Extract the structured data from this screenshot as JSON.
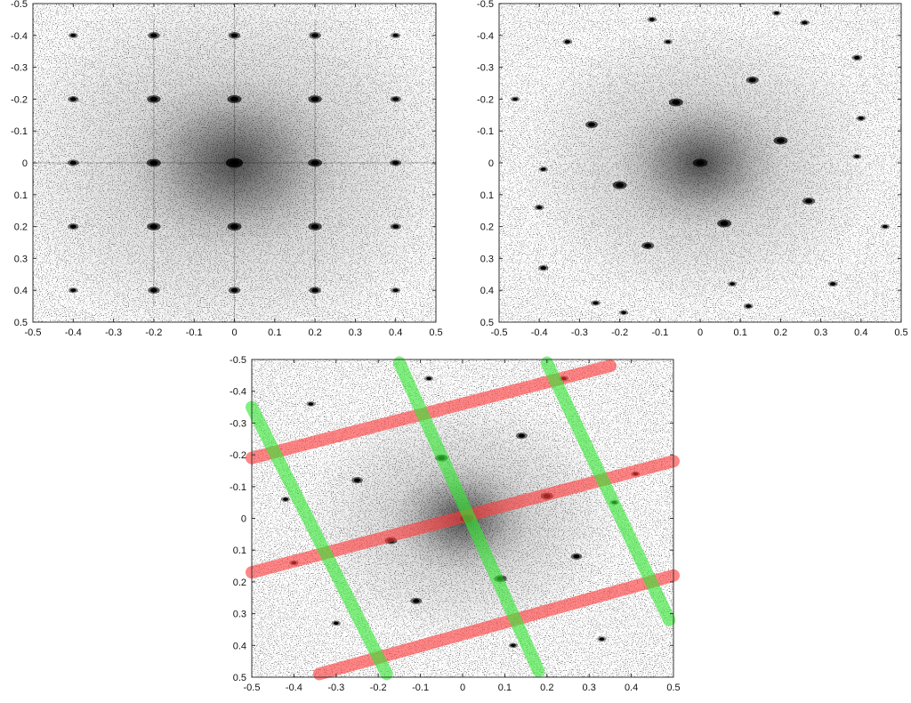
{
  "chart_data": [
    {
      "type": "scatter",
      "panel": "top-left",
      "xlim": [
        -0.5,
        0.5
      ],
      "ylim": [
        -0.5,
        0.5
      ],
      "y_axis_inverted": true,
      "grid": false,
      "x_tick_labels": [
        "-0.5",
        "-0.4",
        "-0.3",
        "-0.2",
        "-0.1",
        "0",
        "0.1",
        "0.2",
        "0.3",
        "0.4",
        "0.5"
      ],
      "y_tick_labels": [
        "-0.5",
        "-0.4",
        "-0.3",
        "-0.2",
        "-0.1",
        "0",
        "0.1",
        "0.2",
        "0.3",
        "0.4",
        "0.5"
      ],
      "diffuse_center": [
        0.0,
        0.0
      ],
      "peaks": [
        {
          "x": 0.0,
          "y": 0.0,
          "i": 1.0
        },
        {
          "x": -0.2,
          "y": 0.0,
          "i": 0.75
        },
        {
          "x": 0.2,
          "y": 0.0,
          "i": 0.75
        },
        {
          "x": 0.0,
          "y": -0.2,
          "i": 0.75
        },
        {
          "x": 0.0,
          "y": 0.2,
          "i": 0.75
        },
        {
          "x": -0.2,
          "y": -0.2,
          "i": 0.7
        },
        {
          "x": 0.2,
          "y": -0.2,
          "i": 0.7
        },
        {
          "x": -0.2,
          "y": 0.2,
          "i": 0.7
        },
        {
          "x": 0.2,
          "y": 0.2,
          "i": 0.7
        },
        {
          "x": -0.4,
          "y": 0.0,
          "i": 0.5
        },
        {
          "x": 0.4,
          "y": 0.0,
          "i": 0.5
        },
        {
          "x": 0.0,
          "y": -0.4,
          "i": 0.55
        },
        {
          "x": 0.0,
          "y": 0.4,
          "i": 0.55
        },
        {
          "x": -0.2,
          "y": -0.4,
          "i": 0.55
        },
        {
          "x": 0.2,
          "y": -0.4,
          "i": 0.55
        },
        {
          "x": -0.2,
          "y": 0.4,
          "i": 0.55
        },
        {
          "x": 0.2,
          "y": 0.4,
          "i": 0.55
        },
        {
          "x": -0.4,
          "y": -0.2,
          "i": 0.45
        },
        {
          "x": 0.4,
          "y": -0.2,
          "i": 0.45
        },
        {
          "x": -0.4,
          "y": 0.2,
          "i": 0.45
        },
        {
          "x": 0.4,
          "y": 0.2,
          "i": 0.45
        },
        {
          "x": -0.4,
          "y": -0.4,
          "i": 0.35
        },
        {
          "x": 0.4,
          "y": -0.4,
          "i": 0.35
        },
        {
          "x": -0.4,
          "y": 0.4,
          "i": 0.35
        },
        {
          "x": 0.4,
          "y": 0.4,
          "i": 0.35
        }
      ],
      "streaks": [
        {
          "x1": -0.5,
          "y1": 0.0,
          "x2": 0.5,
          "y2": 0.0
        },
        {
          "x1": 0.0,
          "y1": -0.5,
          "x2": 0.0,
          "y2": 0.5
        },
        {
          "x1": -0.2,
          "y1": -0.45,
          "x2": -0.2,
          "y2": 0.45
        },
        {
          "x1": 0.2,
          "y1": -0.45,
          "x2": 0.2,
          "y2": 0.45
        }
      ],
      "overlay_lines": []
    },
    {
      "type": "scatter",
      "panel": "top-right",
      "xlim": [
        -0.5,
        0.5
      ],
      "ylim": [
        -0.5,
        0.5
      ],
      "y_axis_inverted": true,
      "grid": false,
      "x_tick_labels": [
        "-0.5",
        "-0.4",
        "-0.3",
        "-0.2",
        "-0.1",
        "0",
        "0.1",
        "0.2",
        "0.3",
        "0.4",
        "0.5"
      ],
      "y_tick_labels": [
        "-0.5",
        "-0.4",
        "-0.3",
        "-0.2",
        "-0.1",
        "0",
        "0.1",
        "0.2",
        "0.3",
        "0.4",
        "0.5"
      ],
      "diffuse_center": [
        0.0,
        0.0
      ],
      "peaks": [
        {
          "x": 0.0,
          "y": 0.0,
          "i": 0.8
        },
        {
          "x": -0.06,
          "y": -0.19,
          "i": 0.75
        },
        {
          "x": 0.06,
          "y": 0.19,
          "i": 0.75
        },
        {
          "x": 0.2,
          "y": -0.07,
          "i": 0.75
        },
        {
          "x": -0.2,
          "y": 0.07,
          "i": 0.75
        },
        {
          "x": 0.13,
          "y": -0.26,
          "i": 0.6
        },
        {
          "x": -0.13,
          "y": 0.26,
          "i": 0.6
        },
        {
          "x": -0.27,
          "y": -0.12,
          "i": 0.6
        },
        {
          "x": 0.27,
          "y": 0.12,
          "i": 0.6
        },
        {
          "x": 0.26,
          "y": -0.44,
          "i": 0.35
        },
        {
          "x": -0.26,
          "y": 0.44,
          "i": 0.35
        },
        {
          "x": 0.39,
          "y": -0.33,
          "i": 0.4
        },
        {
          "x": -0.39,
          "y": 0.33,
          "i": 0.4
        },
        {
          "x": 0.4,
          "y": -0.14,
          "i": 0.35
        },
        {
          "x": -0.4,
          "y": 0.14,
          "i": 0.35
        },
        {
          "x": -0.33,
          "y": -0.38,
          "i": 0.35
        },
        {
          "x": 0.33,
          "y": 0.38,
          "i": 0.35
        },
        {
          "x": -0.46,
          "y": -0.2,
          "i": 0.3
        },
        {
          "x": 0.46,
          "y": 0.2,
          "i": 0.3
        },
        {
          "x": -0.12,
          "y": -0.45,
          "i": 0.35
        },
        {
          "x": 0.12,
          "y": 0.45,
          "i": 0.35
        },
        {
          "x": -0.08,
          "y": -0.38,
          "i": 0.3
        },
        {
          "x": 0.08,
          "y": 0.38,
          "i": 0.3
        },
        {
          "x": -0.39,
          "y": 0.02,
          "i": 0.3
        },
        {
          "x": 0.39,
          "y": -0.02,
          "i": 0.3
        },
        {
          "x": 0.19,
          "y": -0.47,
          "i": 0.3
        },
        {
          "x": -0.19,
          "y": 0.47,
          "i": 0.3
        }
      ],
      "streaks": [],
      "overlay_lines": []
    },
    {
      "type": "scatter",
      "panel": "bottom",
      "xlim": [
        -0.5,
        0.5
      ],
      "ylim": [
        -0.5,
        0.5
      ],
      "y_axis_inverted": true,
      "grid": false,
      "x_tick_labels": [
        "-0.5",
        "-0.4",
        "-0.3",
        "-0.2",
        "-0.1",
        "0",
        "0.1",
        "0.2",
        "0.3",
        "0.4",
        "0.5"
      ],
      "y_tick_labels": [
        "-0.5",
        "-0.4",
        "-0.3",
        "-0.2",
        "-0.1",
        "0",
        "0.1",
        "0.2",
        "0.3",
        "0.4",
        "0.5"
      ],
      "diffuse_center": [
        0.0,
        0.0
      ],
      "peaks": [
        {
          "x": 0.01,
          "y": 0.0,
          "i": 0.7
        },
        {
          "x": -0.05,
          "y": -0.19,
          "i": 0.6
        },
        {
          "x": 0.09,
          "y": 0.19,
          "i": 0.6
        },
        {
          "x": 0.2,
          "y": -0.07,
          "i": 0.6
        },
        {
          "x": -0.17,
          "y": 0.07,
          "i": 0.6
        },
        {
          "x": 0.14,
          "y": -0.26,
          "i": 0.5
        },
        {
          "x": -0.11,
          "y": 0.26,
          "i": 0.5
        },
        {
          "x": -0.25,
          "y": -0.12,
          "i": 0.5
        },
        {
          "x": 0.27,
          "y": 0.12,
          "i": 0.5
        },
        {
          "x": 0.24,
          "y": -0.44,
          "i": 0.35
        },
        {
          "x": -0.3,
          "y": 0.33,
          "i": 0.3
        },
        {
          "x": 0.41,
          "y": -0.14,
          "i": 0.3
        },
        {
          "x": -0.4,
          "y": 0.14,
          "i": 0.3
        },
        {
          "x": 0.33,
          "y": 0.38,
          "i": 0.3
        },
        {
          "x": -0.36,
          "y": -0.36,
          "i": 0.3
        },
        {
          "x": 0.12,
          "y": 0.4,
          "i": 0.3
        },
        {
          "x": -0.08,
          "y": -0.44,
          "i": 0.3
        },
        {
          "x": 0.36,
          "y": -0.05,
          "i": 0.3
        },
        {
          "x": -0.42,
          "y": -0.06,
          "i": 0.3
        }
      ],
      "streaks": [],
      "overlay_lines": [
        {
          "color": "#ff3b3b",
          "x1": -0.5,
          "y1": -0.19,
          "x2": 0.35,
          "y2": -0.48
        },
        {
          "color": "#ff3b3b",
          "x1": -0.5,
          "y1": 0.17,
          "x2": 0.5,
          "y2": -0.18
        },
        {
          "color": "#ff3b3b",
          "x1": -0.34,
          "y1": 0.49,
          "x2": 0.5,
          "y2": 0.18
        },
        {
          "color": "#33e633",
          "x1": -0.5,
          "y1": -0.35,
          "x2": -0.18,
          "y2": 0.49
        },
        {
          "color": "#33e633",
          "x1": -0.15,
          "y1": -0.49,
          "x2": 0.18,
          "y2": 0.48
        },
        {
          "color": "#33e633",
          "x1": 0.2,
          "y1": -0.49,
          "x2": 0.49,
          "y2": 0.32
        }
      ]
    }
  ]
}
